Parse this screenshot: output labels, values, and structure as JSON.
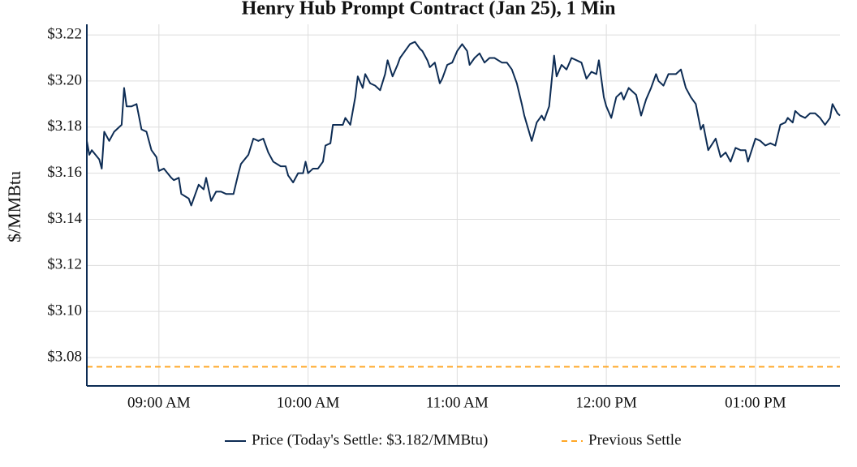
{
  "chart_data": {
    "type": "line",
    "title": "Henry Hub Prompt Contract (Jan 25), 1 Min",
    "y_label": "$/MMBtu",
    "grid": true,
    "legend": "bottom",
    "xlim": [
      "08:31",
      "13:34"
    ],
    "xticks": [
      {
        "value": "09:00",
        "label": "09:00 AM"
      },
      {
        "value": "10:00",
        "label": "10:00 AM"
      },
      {
        "value": "11:00",
        "label": "11:00 AM"
      },
      {
        "value": "12:00",
        "label": "12:00 PM"
      },
      {
        "value": "13:00",
        "label": "01:00 PM"
      }
    ],
    "ylim": [
      3.0677,
      3.2246
    ],
    "yticks": [
      {
        "value": 3.08,
        "label": "$3.08"
      },
      {
        "value": 3.1,
        "label": "$3.10"
      },
      {
        "value": 3.12,
        "label": "$3.12"
      },
      {
        "value": 3.14,
        "label": "$3.14"
      },
      {
        "value": 3.16,
        "label": "$3.16"
      },
      {
        "value": 3.18,
        "label": "$3.18"
      },
      {
        "value": 3.2,
        "label": "$3.20"
      },
      {
        "value": 3.22,
        "label": "$3.22"
      }
    ],
    "x": [
      "08:31",
      "08:32",
      "08:33",
      "08:36",
      "08:37",
      "08:38",
      "08:40",
      "08:42",
      "08:44",
      "08:45",
      "08:46",
      "08:47",
      "08:49",
      "08:51",
      "08:53",
      "08:55",
      "08:57",
      "08:59",
      "09:00",
      "09:02",
      "09:05",
      "09:06",
      "09:08",
      "09:09",
      "09:12",
      "09:13",
      "09:16",
      "09:18",
      "09:19",
      "09:21",
      "09:23",
      "09:25",
      "09:27",
      "09:30",
      "09:32",
      "09:33",
      "09:36",
      "09:38",
      "09:40",
      "09:42",
      "09:44",
      "09:46",
      "09:49",
      "09:51",
      "09:52",
      "09:54",
      "09:56",
      "09:58",
      "09:59",
      "10:00",
      "10:02",
      "10:04",
      "10:06",
      "10:07",
      "10:09",
      "10:10",
      "10:12",
      "10:14",
      "10:15",
      "10:17",
      "10:19",
      "10:20",
      "10:22",
      "10:23",
      "10:25",
      "10:27",
      "10:29",
      "10:31",
      "10:32",
      "10:34",
      "10:36",
      "10:37",
      "10:39",
      "10:41",
      "10:43",
      "10:45",
      "10:46",
      "10:48",
      "10:49",
      "10:51",
      "10:53",
      "10:54",
      "10:56",
      "10:58",
      "11:00",
      "11:02",
      "11:04",
      "11:05",
      "11:07",
      "11:09",
      "11:11",
      "11:13",
      "11:15",
      "11:18",
      "11:20",
      "11:22",
      "11:24",
      "11:26",
      "11:27",
      "11:30",
      "11:32",
      "11:34",
      "11:35",
      "11:37",
      "11:39",
      "11:40",
      "11:42",
      "11:44",
      "11:46",
      "11:48",
      "11:50",
      "11:52",
      "11:54",
      "11:56",
      "11:57",
      "11:59",
      "12:00",
      "12:02",
      "12:04",
      "12:06",
      "12:07",
      "12:09",
      "12:12",
      "12:14",
      "12:16",
      "12:18",
      "12:20",
      "12:21",
      "12:23",
      "12:25",
      "12:28",
      "12:30",
      "12:32",
      "12:34",
      "12:36",
      "12:38",
      "12:39",
      "12:41",
      "12:44",
      "12:46",
      "12:48",
      "12:50",
      "12:52",
      "12:54",
      "12:56",
      "12:57",
      "13:00",
      "13:02",
      "13:04",
      "13:06",
      "13:08",
      "13:10",
      "13:12",
      "13:13",
      "13:15",
      "13:16",
      "13:18",
      "13:20",
      "13:22",
      "13:24",
      "13:26",
      "13:28",
      "13:30",
      "13:31",
      "13:33",
      "13:34"
    ],
    "series": [
      {
        "name": "Price (Today's Settle: $3.182/MMBtu)",
        "color": "#0d2c54",
        "values": [
          3.174,
          3.168,
          3.17,
          3.166,
          3.162,
          3.178,
          3.174,
          3.178,
          3.18,
          3.181,
          3.197,
          3.189,
          3.189,
          3.19,
          3.179,
          3.178,
          3.17,
          3.167,
          3.161,
          3.162,
          3.158,
          3.157,
          3.158,
          3.151,
          3.149,
          3.146,
          3.155,
          3.153,
          3.158,
          3.148,
          3.152,
          3.152,
          3.151,
          3.151,
          3.16,
          3.164,
          3.168,
          3.175,
          3.174,
          3.175,
          3.169,
          3.165,
          3.163,
          3.163,
          3.159,
          3.156,
          3.16,
          3.16,
          3.165,
          3.16,
          3.162,
          3.162,
          3.165,
          3.172,
          3.173,
          3.181,
          3.181,
          3.181,
          3.184,
          3.181,
          3.193,
          3.202,
          3.197,
          3.203,
          3.199,
          3.198,
          3.196,
          3.203,
          3.209,
          3.202,
          3.207,
          3.21,
          3.213,
          3.216,
          3.217,
          3.214,
          3.213,
          3.209,
          3.206,
          3.208,
          3.199,
          3.201,
          3.207,
          3.208,
          3.213,
          3.216,
          3.213,
          3.207,
          3.21,
          3.212,
          3.208,
          3.21,
          3.21,
          3.208,
          3.208,
          3.205,
          3.199,
          3.19,
          3.185,
          3.174,
          3.182,
          3.185,
          3.183,
          3.189,
          3.211,
          3.202,
          3.207,
          3.205,
          3.21,
          3.209,
          3.208,
          3.201,
          3.204,
          3.203,
          3.209,
          3.193,
          3.189,
          3.184,
          3.193,
          3.195,
          3.192,
          3.197,
          3.194,
          3.185,
          3.192,
          3.197,
          3.203,
          3.2,
          3.198,
          3.203,
          3.203,
          3.205,
          3.197,
          3.193,
          3.19,
          3.179,
          3.181,
          3.17,
          3.175,
          3.167,
          3.169,
          3.165,
          3.171,
          3.17,
          3.17,
          3.165,
          3.175,
          3.174,
          3.172,
          3.173,
          3.172,
          3.181,
          3.182,
          3.184,
          3.182,
          3.187,
          3.185,
          3.184,
          3.186,
          3.186,
          3.184,
          3.181,
          3.184,
          3.19,
          3.186,
          3.185
        ]
      }
    ],
    "hlines": [
      {
        "name": "Previous Settle",
        "value": 3.076,
        "color": "#ffa726",
        "dash": true
      }
    ]
  }
}
